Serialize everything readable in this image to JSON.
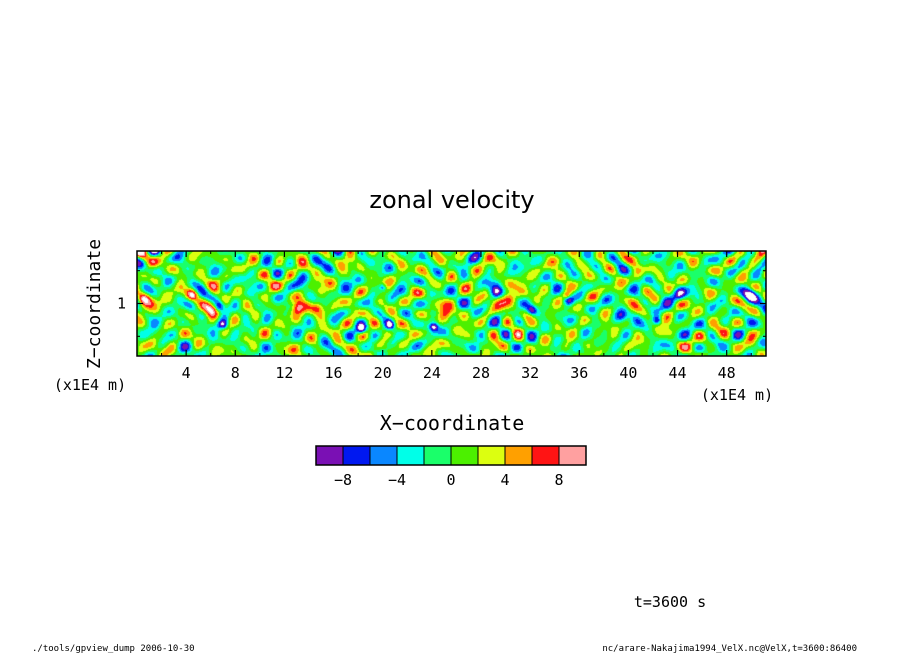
{
  "chart_data": {
    "type": "heatmap",
    "title": "zonal velocity",
    "xlabel": "X−coordinate",
    "ylabel": "Z−coordinate",
    "x_unit_label": "(x1E4 m)",
    "y_unit_label": "(x1E4 m)",
    "xlim": [
      0,
      51.2
    ],
    "ylim": [
      0.2,
      1.8
    ],
    "x_ticks": [
      4,
      8,
      12,
      16,
      20,
      24,
      28,
      32,
      36,
      40,
      44,
      48
    ],
    "x_tick_labels": [
      "4",
      "8",
      "12",
      "16",
      "20",
      "24",
      "28",
      "32",
      "36",
      "40",
      "44",
      "48"
    ],
    "y_ticks": [
      1
    ],
    "y_tick_labels": [
      "1"
    ],
    "colorbar": {
      "levels": [
        -10,
        -8,
        -6,
        -4,
        -2,
        0,
        2,
        4,
        6,
        8,
        10
      ],
      "colors": [
        "#7a10b4",
        "#0018f0",
        "#0a87ff",
        "#00ffe8",
        "#1aff6a",
        "#4cf000",
        "#dcff10",
        "#ffa000",
        "#ff1414",
        "#ffa0a0"
      ],
      "tick_values": [
        -8,
        -4,
        0,
        4,
        8
      ],
      "tick_labels": [
        "−8",
        "−4",
        "0",
        "4",
        "8"
      ]
    },
    "time_label": "t=3600 s",
    "footer_left": "./tools/gpview_dump  2006-10-30",
    "footer_right": "nc/arare-Nakajima1994_VelX.nc@VelX,t=3600:86400"
  }
}
